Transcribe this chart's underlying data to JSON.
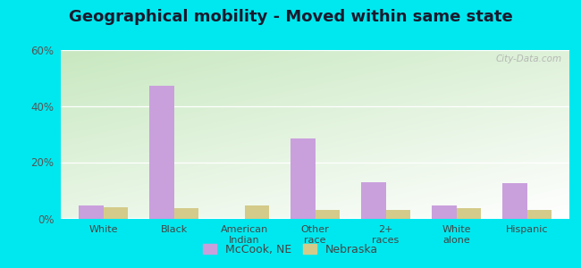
{
  "title": "Geographical mobility - Moved within same state",
  "categories": [
    "White",
    "Black",
    "American\nIndian",
    "Other\nrace",
    "2+\nraces",
    "White\nalone",
    "Hispanic"
  ],
  "mccook_values": [
    4.5,
    47.0,
    0.0,
    28.5,
    13.0,
    4.5,
    12.5
  ],
  "nebraska_values": [
    4.0,
    3.5,
    4.5,
    3.0,
    3.0,
    3.5,
    3.0
  ],
  "mccook_color": "#c9a0dc",
  "nebraska_color": "#d4cb8a",
  "bar_width": 0.35,
  "ylim": [
    0,
    60
  ],
  "yticks": [
    0,
    20,
    40,
    60
  ],
  "ytick_labels": [
    "0%",
    "20%",
    "40%",
    "60%"
  ],
  "outer_bg": "#00e8ef",
  "title_fontsize": 13,
  "legend_label_mccook": "McCook, NE",
  "legend_label_nebraska": "Nebraska",
  "watermark": "City-Data.com"
}
